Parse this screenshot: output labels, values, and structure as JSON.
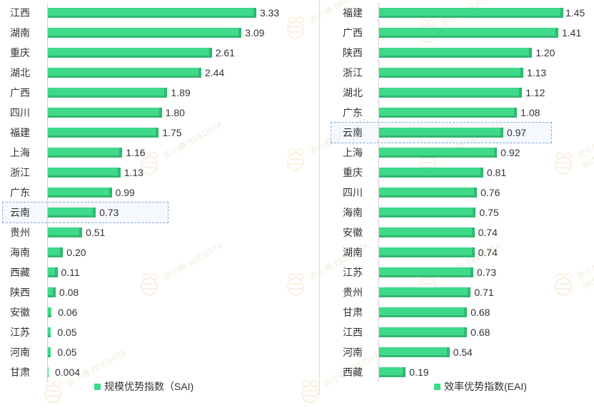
{
  "colors": {
    "bar": "#3fd98a",
    "bar_dark": "#2fb96f",
    "highlight_border": "#7fa6e0"
  },
  "watermark": "农小蜂 BEEDATA",
  "chart_data": [
    {
      "type": "bar",
      "orientation": "horizontal",
      "categories": [
        "江西",
        "湖南",
        "重庆",
        "湖北",
        "广西",
        "四川",
        "福建",
        "上海",
        "浙江",
        "广东",
        "云南",
        "贵州",
        "海南",
        "西藏",
        "陕西",
        "安徽",
        "江苏",
        "河南",
        "甘肃"
      ],
      "values": [
        3.33,
        3.09,
        2.61,
        2.44,
        1.89,
        1.8,
        1.75,
        1.16,
        1.13,
        0.99,
        0.73,
        0.51,
        0.2,
        0.11,
        0.08,
        0.06,
        0.05,
        0.05,
        0.004
      ],
      "value_labels": [
        "3.33",
        "3.09",
        "2.61",
        "2.44",
        "1.89",
        "1.80",
        "1.75",
        "1.16",
        "1.13",
        "0.99",
        "0.73",
        "0.51",
        "0.20",
        "0.11",
        "0.08",
        "0.06",
        "0.05",
        "0.05",
        "0.004"
      ],
      "highlight": "云南",
      "legend": "规模优势指数（SAI)",
      "xlim": [
        0,
        3.4
      ]
    },
    {
      "type": "bar",
      "orientation": "horizontal",
      "categories": [
        "福建",
        "广西",
        "陕西",
        "浙江",
        "湖北",
        "广东",
        "云南",
        "上海",
        "重庆",
        "四川",
        "海南",
        "安徽",
        "湖南",
        "江苏",
        "贵州",
        "甘肃",
        "江西",
        "河南",
        "西藏"
      ],
      "values": [
        1.45,
        1.41,
        1.2,
        1.13,
        1.12,
        1.08,
        0.97,
        0.92,
        0.81,
        0.76,
        0.75,
        0.74,
        0.74,
        0.73,
        0.71,
        0.68,
        0.68,
        0.54,
        0.19
      ],
      "value_labels": [
        "1.45",
        "1.41",
        "1.20",
        "1.13",
        "1.12",
        "1.08",
        "0.97",
        "0.92",
        "0.81",
        "0.76",
        "0.75",
        "0.74",
        "0.74",
        "0.73",
        "0.71",
        "0.68",
        "0.68",
        "0.54",
        "0.19"
      ],
      "highlight": "云南",
      "legend": "效率优势指数(EAI)",
      "xlim": [
        0,
        1.45
      ]
    }
  ]
}
